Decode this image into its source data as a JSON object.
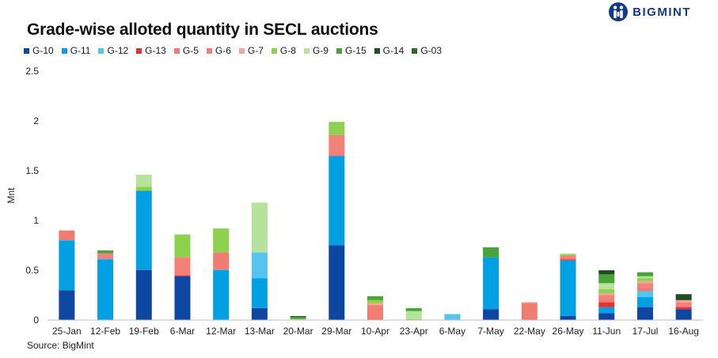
{
  "header": {
    "logo_text": "BIGMINT"
  },
  "chart_data": {
    "type": "bar",
    "stacked": true,
    "title": "Grade-wise alloted quantity in SECL auctions",
    "xlabel": "",
    "ylabel": "Mnt",
    "ylim": [
      0,
      2.5
    ],
    "yticks": [
      "0",
      "0.5",
      "1",
      "1.5",
      "2",
      "2.5"
    ],
    "ytick_values": [
      0,
      0.5,
      1,
      1.5,
      2,
      2.5
    ],
    "grid": false,
    "legend_position": "top",
    "source": "Source: BigMint",
    "categories": [
      "25-Jan",
      "12-Feb",
      "19-Feb",
      "6-Mar",
      "12-Mar",
      "13-Mar",
      "20-Mar",
      "29-Mar",
      "10-Apr",
      "23-Apr",
      "6-May",
      "7-May",
      "22-May",
      "26-May",
      "11-Jun",
      "17-Jul",
      "16-Aug"
    ],
    "series": [
      {
        "name": "G-10",
        "color": "#0e47a1",
        "values": [
          0.3,
          0,
          0.5,
          0.44,
          0,
          0.12,
          0,
          0.75,
          0,
          0,
          0,
          0.11,
          0,
          0.04,
          0.07,
          0.13,
          0.11
        ]
      },
      {
        "name": "G-11",
        "color": "#00a0e3",
        "values": [
          0.5,
          0.61,
          0.8,
          0,
          0.5,
          0.3,
          0,
          0.9,
          0,
          0,
          0,
          0.52,
          0,
          0.56,
          0.06,
          0.1,
          0
        ]
      },
      {
        "name": "G-12",
        "color": "#55c4ef",
        "values": [
          0,
          0,
          0,
          0,
          0,
          0.26,
          0,
          0,
          0,
          0,
          0.06,
          0,
          0,
          0,
          0,
          0.06,
          0
        ]
      },
      {
        "name": "G-13",
        "color": "#e8302e",
        "values": [
          0,
          0,
          0,
          0.01,
          0,
          0,
          0,
          0,
          0,
          0,
          0,
          0,
          0,
          0.01,
          0.05,
          0,
          0.02
        ]
      },
      {
        "name": "G-5",
        "color": "#f07c72",
        "values": [
          0.1,
          0,
          0,
          0,
          0.18,
          0,
          0,
          0,
          0.15,
          0,
          0,
          0,
          0.17,
          0.02,
          0.03,
          0.04,
          0.02
        ]
      },
      {
        "name": "G-6",
        "color": "#f4807a",
        "values": [
          0,
          0.06,
          0,
          0.18,
          0,
          0,
          0,
          0.21,
          0,
          0,
          0,
          0,
          0,
          0.02,
          0.04,
          0.04,
          0.03
        ]
      },
      {
        "name": "G-7",
        "color": "#f2a79e",
        "values": [
          0,
          0,
          0,
          0,
          0,
          0,
          0,
          0,
          0.02,
          0,
          0,
          0,
          0.01,
          0,
          0.02,
          0.02,
          0.02
        ]
      },
      {
        "name": "G-8",
        "color": "#8ed14e",
        "values": [
          0,
          0,
          0.04,
          0.23,
          0.24,
          0,
          0,
          0.13,
          0.03,
          0.01,
          0,
          0,
          0,
          0.01,
          0.04,
          0.03,
          0
        ]
      },
      {
        "name": "G-9",
        "color": "#b6e39c",
        "values": [
          0,
          0,
          0.12,
          0,
          0,
          0.5,
          0.01,
          0,
          0,
          0.08,
          0,
          0,
          0,
          0.01,
          0.06,
          0.02,
          0
        ]
      },
      {
        "name": "G-15",
        "color": "#4aa33a",
        "values": [
          0,
          0.03,
          0,
          0,
          0,
          0,
          0.02,
          0,
          0.04,
          0.03,
          0,
          0.1,
          0,
          0,
          0.09,
          0.04,
          0
        ]
      },
      {
        "name": "G-14",
        "color": "#1f4d1f",
        "values": [
          0,
          0,
          0,
          0,
          0,
          0,
          0.01,
          0,
          0,
          0,
          0,
          0,
          0,
          0,
          0.04,
          0,
          0.06
        ]
      },
      {
        "name": "G-03",
        "color": "#2f6b25",
        "values": [
          0,
          0,
          0,
          0,
          0,
          0,
          0,
          0,
          0,
          0,
          0,
          0,
          0,
          0,
          0,
          0,
          0
        ]
      }
    ]
  }
}
